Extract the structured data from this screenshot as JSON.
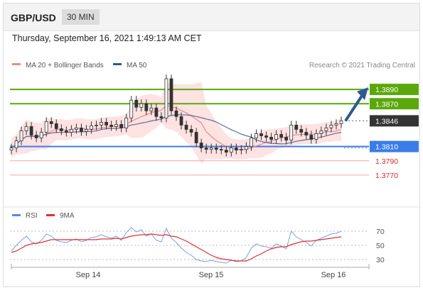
{
  "header": {
    "pair": "GBP/USD",
    "timeframe": "30 MIN"
  },
  "datetime": "Thursday, September 16, 2021 1:49:13 AM CET",
  "legend": {
    "bb": "MA 20 + Bollinger Bands",
    "ma50": "MA 50",
    "rsi": "RSI",
    "rsi_ma": "9MA"
  },
  "credit": "Research © 2021 Trading Central",
  "colors": {
    "green": "#5aa80a",
    "blue": "#3a7de8",
    "red": "#e88a8a",
    "bb": "#ffd8d8",
    "ma50": "#5a6f9a",
    "rsi": "#7aa0e6",
    "rsi_ma": "#e03030"
  },
  "chart_data": {
    "type": "candlestick",
    "x_ticks": [
      "Sep 14",
      "Sep 15",
      "Sep 16"
    ],
    "y_range": [
      1.3754,
      1.3909
    ],
    "levels": [
      {
        "label": "1.3890",
        "value": 1.389,
        "kind": "resistance"
      },
      {
        "label": "1.3870",
        "value": 1.387,
        "kind": "resistance"
      },
      {
        "label": "1.3846",
        "value": 1.3846,
        "kind": "last"
      },
      {
        "label": "1.3810",
        "value": 1.381,
        "kind": "pivot"
      },
      {
        "label": "1.3790",
        "value": 1.379,
        "kind": "support"
      },
      {
        "label": "1.3770",
        "value": 1.377,
        "kind": "support"
      }
    ],
    "close": [
      1.3808,
      1.3818,
      1.3832,
      1.3838,
      1.3826,
      1.3822,
      1.383,
      1.3845,
      1.3842,
      1.3835,
      1.3832,
      1.383,
      1.3834,
      1.3836,
      1.3831,
      1.3834,
      1.3839,
      1.384,
      1.3844,
      1.384,
      1.3838,
      1.3841,
      1.3836,
      1.385,
      1.3875,
      1.3865,
      1.387,
      1.386,
      1.3864,
      1.3852,
      1.385,
      1.3905,
      1.386,
      1.3852,
      1.384,
      1.3834,
      1.383,
      1.3815,
      1.3808,
      1.3806,
      1.3808,
      1.3806,
      1.3805,
      1.3802,
      1.3808,
      1.3805,
      1.3806,
      1.381,
      1.3822,
      1.3828,
      1.3825,
      1.3823,
      1.382,
      1.3827,
      1.3823,
      1.3819,
      1.384,
      1.3834,
      1.383,
      1.3826,
      1.382,
      1.3828,
      1.3832,
      1.3836,
      1.384,
      1.3842,
      1.3846
    ],
    "rsi": {
      "levels": [
        70,
        50,
        30
      ],
      "rsi": [
        42,
        50,
        57,
        63,
        55,
        52,
        57,
        66,
        63,
        57,
        55,
        54,
        57,
        59,
        55,
        57,
        61,
        62,
        65,
        62,
        60,
        63,
        57,
        68,
        75,
        69,
        72,
        63,
        66,
        57,
        55,
        74,
        60,
        54,
        46,
        40,
        36,
        30,
        28,
        27,
        29,
        27,
        26,
        25,
        29,
        27,
        28,
        33,
        46,
        52,
        49,
        48,
        46,
        52,
        49,
        45,
        70,
        62,
        58,
        54,
        49,
        57,
        60,
        63,
        66,
        67,
        70
      ],
      "ma9": [
        40,
        42,
        46,
        50,
        52,
        53,
        54,
        56,
        58,
        58,
        58,
        58,
        58,
        58,
        58,
        58,
        58,
        58,
        59,
        59,
        59,
        60,
        59,
        61,
        63,
        64,
        65,
        65,
        66,
        65,
        64,
        65,
        63,
        62,
        59,
        56,
        52,
        48,
        44,
        40,
        36,
        33,
        31,
        30,
        29,
        28,
        28,
        28,
        31,
        35,
        38,
        42,
        45,
        47,
        48,
        48,
        51,
        53,
        55,
        56,
        56,
        57,
        58,
        59,
        60,
        61,
        62
      ]
    }
  }
}
